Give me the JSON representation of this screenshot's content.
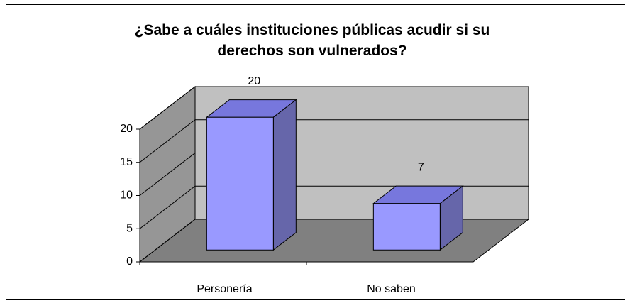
{
  "chart_data": {
    "type": "bar3d",
    "title": "¿Sabe a cuáles instituciones públicas acudir si su derechos son vulnerados?",
    "categories": [
      "Personería",
      "No saben"
    ],
    "values": [
      20,
      7
    ],
    "color": "#9999ff",
    "ylim": [
      0,
      20
    ],
    "yticks": [
      0,
      5,
      10,
      15,
      20
    ],
    "grid": true
  }
}
